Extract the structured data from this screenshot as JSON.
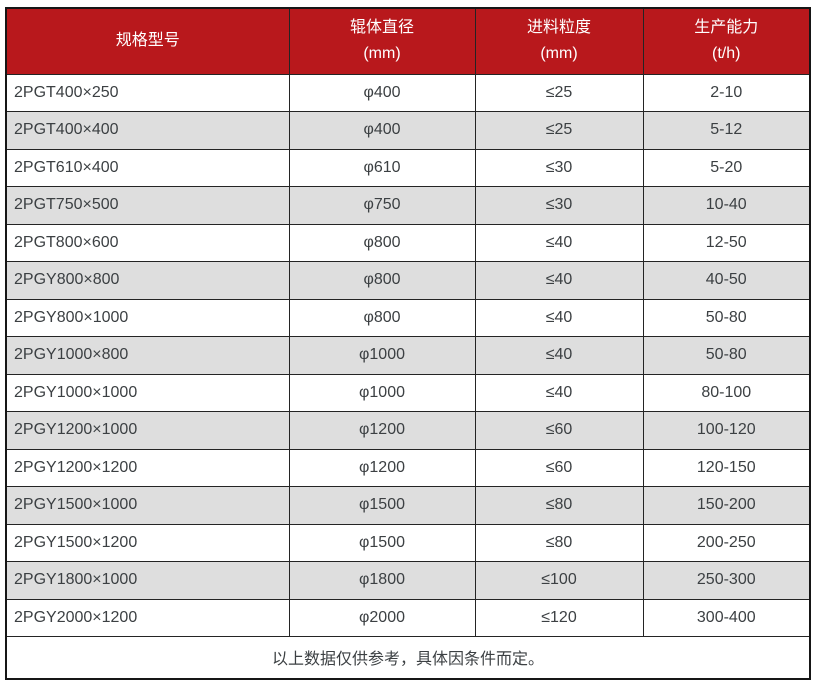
{
  "colors": {
    "header_bg": "#b8181c",
    "header_text": "#ffffff",
    "stripe_row_bg": "#dedede",
    "body_text": "#3c4043",
    "border": "#242424"
  },
  "table": {
    "headers": [
      {
        "line1": "规格型号"
      },
      {
        "line1": "辊体直径",
        "line2": "(mm)"
      },
      {
        "line1": "进料粒度",
        "line2": "(mm)"
      },
      {
        "line1": "生产能力",
        "line2": "(t/h)"
      }
    ],
    "rows": [
      [
        "2PGT400×250",
        "φ400",
        "≤25",
        "2-10"
      ],
      [
        "2PGT400×400",
        "φ400",
        "≤25",
        "5-12"
      ],
      [
        "2PGT610×400",
        "φ610",
        "≤30",
        "5-20"
      ],
      [
        "2PGT750×500",
        "φ750",
        "≤30",
        "10-40"
      ],
      [
        "2PGT800×600",
        "φ800",
        "≤40",
        "12-50"
      ],
      [
        "2PGY800×800",
        "φ800",
        "≤40",
        "40-50"
      ],
      [
        "2PGY800×1000",
        "φ800",
        "≤40",
        "50-80"
      ],
      [
        "2PGY1000×800",
        "φ1000",
        "≤40",
        "50-80"
      ],
      [
        "2PGY1000×1000",
        "φ1000",
        "≤40",
        "80-100"
      ],
      [
        "2PGY1200×1000",
        "φ1200",
        "≤60",
        "100-120"
      ],
      [
        "2PGY1200×1200",
        "φ1200",
        "≤60",
        "120-150"
      ],
      [
        "2PGY1500×1000",
        "φ1500",
        "≤80",
        "150-200"
      ],
      [
        "2PGY1500×1200",
        "φ1500",
        "≤80",
        "200-250"
      ],
      [
        "2PGY1800×1000",
        "φ1800",
        "≤100",
        "250-300"
      ],
      [
        "2PGY2000×1200",
        "φ2000",
        "≤120",
        "300-400"
      ]
    ],
    "footer": "以上数据仅供参考，具体因条件而定。"
  }
}
